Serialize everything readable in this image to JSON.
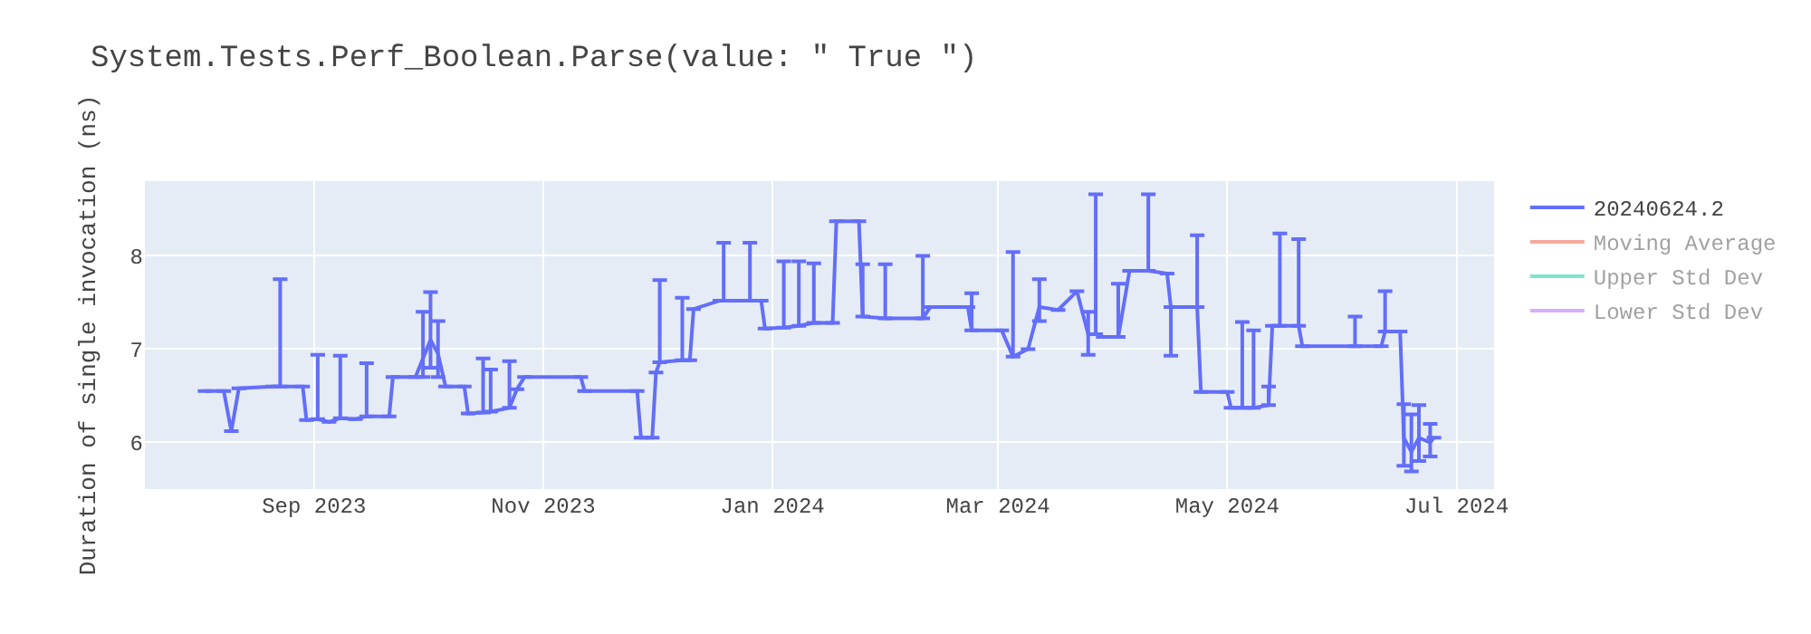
{
  "chart_data": {
    "type": "line",
    "title": "System.Tests.Perf_Boolean.Parse(value: \" True \")",
    "ylabel": "Duration of single invocation (ns)",
    "x": [
      "2023-08-03",
      "2023-08-08",
      "2023-08-10",
      "2023-08-12",
      "2023-08-21",
      "2023-08-23",
      "2023-08-29",
      "2023-08-30",
      "2023-09-02",
      "2023-09-05",
      "2023-09-08",
      "2023-09-12",
      "2023-09-15",
      "2023-09-21",
      "2023-09-22",
      "2023-09-28",
      "2023-09-30",
      "2023-10-02",
      "2023-10-04",
      "2023-10-06",
      "2023-10-11",
      "2023-10-12",
      "2023-10-16",
      "2023-10-18",
      "2023-10-23",
      "2023-10-25",
      "2023-10-27",
      "2023-11-11",
      "2023-11-12",
      "2023-11-26",
      "2023-11-27",
      "2023-11-30",
      "2023-12-01",
      "2023-12-02",
      "2023-12-08",
      "2023-12-10",
      "2023-12-11",
      "2023-12-18",
      "2023-12-19",
      "2023-12-26",
      "2023-12-29",
      "2023-12-30",
      "2024-01-04",
      "2024-01-08",
      "2024-01-12",
      "2024-01-17",
      "2024-01-18",
      "2024-01-24",
      "2024-01-25",
      "2024-01-31",
      "2024-02-10",
      "2024-02-12",
      "2024-02-22",
      "2024-02-23",
      "2024-03-02",
      "2024-03-05",
      "2024-03-09",
      "2024-03-12",
      "2024-03-17",
      "2024-03-22",
      "2024-03-25",
      "2024-03-27",
      "2024-03-29",
      "2024-04-02",
      "2024-04-05",
      "2024-04-10",
      "2024-04-15",
      "2024-04-16",
      "2024-04-23",
      "2024-04-24",
      "2024-05-01",
      "2024-05-02",
      "2024-05-05",
      "2024-05-08",
      "2024-05-12",
      "2024-05-13",
      "2024-05-15",
      "2024-05-20",
      "2024-05-21",
      "2024-06-04",
      "2024-06-11",
      "2024-06-12",
      "2024-06-16",
      "2024-06-17",
      "2024-06-19",
      "2024-06-21",
      "2024-06-24",
      "2024-06-25"
    ],
    "series": [
      {
        "name": "20240624.2",
        "color": "#636efa",
        "values": [
          6.55,
          6.55,
          6.12,
          6.58,
          6.6,
          6.6,
          6.6,
          6.24,
          6.25,
          6.22,
          6.26,
          6.25,
          6.28,
          6.28,
          6.7,
          6.7,
          6.9,
          7.1,
          6.95,
          6.6,
          6.6,
          6.31,
          6.32,
          6.33,
          6.37,
          6.57,
          6.7,
          6.7,
          6.55,
          6.55,
          6.05,
          6.05,
          6.75,
          6.86,
          6.88,
          6.88,
          7.43,
          7.52,
          7.52,
          7.52,
          7.52,
          7.22,
          7.23,
          7.25,
          7.28,
          7.28,
          8.37,
          8.37,
          7.35,
          7.33,
          7.33,
          7.45,
          7.45,
          7.2,
          7.2,
          6.92,
          7.0,
          7.45,
          7.42,
          7.62,
          7.16,
          7.16,
          7.13,
          7.13,
          7.84,
          7.84,
          7.81,
          7.45,
          7.45,
          6.54,
          6.54,
          6.37,
          6.37,
          6.37,
          6.4,
          7.25,
          7.25,
          7.25,
          7.03,
          7.03,
          7.03,
          7.19,
          7.19,
          6.05,
          5.9,
          6.05,
          6.0,
          6.05
        ],
        "errors": [
          null,
          null,
          null,
          null,
          null,
          [
            6.6,
            7.75
          ],
          null,
          null,
          [
            6.25,
            6.94
          ],
          null,
          [
            6.26,
            6.93
          ],
          null,
          [
            6.28,
            6.85
          ],
          null,
          null,
          null,
          [
            6.7,
            7.4
          ],
          [
            6.8,
            7.61
          ],
          [
            6.7,
            7.3
          ],
          null,
          null,
          null,
          [
            6.32,
            6.9
          ],
          [
            6.33,
            6.78
          ],
          [
            6.37,
            6.87
          ],
          null,
          null,
          null,
          null,
          null,
          null,
          null,
          null,
          [
            6.86,
            7.74
          ],
          [
            6.88,
            7.55
          ],
          null,
          null,
          null,
          [
            7.52,
            8.14
          ],
          [
            7.52,
            8.14
          ],
          null,
          null,
          [
            7.23,
            7.94
          ],
          [
            7.25,
            7.94
          ],
          [
            7.28,
            7.92
          ],
          null,
          null,
          null,
          [
            7.35,
            7.91
          ],
          [
            7.33,
            7.91
          ],
          [
            7.33,
            8.0
          ],
          null,
          null,
          [
            7.2,
            7.6
          ],
          null,
          [
            6.92,
            8.04
          ],
          null,
          [
            7.3,
            7.75
          ],
          null,
          null,
          [
            6.94,
            7.4
          ],
          [
            7.16,
            8.66
          ],
          null,
          [
            7.13,
            7.7
          ],
          null,
          [
            7.84,
            8.66
          ],
          null,
          [
            6.93,
            7.45
          ],
          [
            7.45,
            8.22
          ],
          null,
          null,
          null,
          [
            6.37,
            7.29
          ],
          [
            6.37,
            7.2
          ],
          [
            6.4,
            6.6
          ],
          null,
          [
            7.25,
            8.24
          ],
          [
            7.25,
            8.18
          ],
          null,
          [
            7.03,
            7.35
          ],
          null,
          [
            7.19,
            7.62
          ],
          null,
          [
            5.75,
            6.41
          ],
          [
            5.69,
            6.3
          ],
          [
            5.8,
            6.4
          ],
          [
            5.85,
            6.2
          ],
          null
        ]
      },
      {
        "name": "Moving Average",
        "color": "#ef553b",
        "values": [
          null,
          null,
          null,
          null,
          null,
          null,
          null,
          null,
          null,
          null,
          null,
          null,
          null,
          null,
          null,
          null,
          null,
          null,
          null,
          null,
          null,
          null,
          null,
          null,
          null,
          null,
          null,
          null,
          null,
          null,
          null,
          null,
          null,
          null,
          null,
          null,
          null,
          null,
          null,
          null,
          null,
          null,
          null,
          null,
          null,
          null,
          null,
          null,
          null,
          null,
          null,
          null,
          null,
          null,
          null,
          null,
          null,
          null,
          null,
          null,
          null,
          null,
          null,
          null,
          null,
          null,
          null,
          null,
          null,
          null,
          null,
          null,
          null,
          null,
          null,
          null,
          null,
          null,
          null,
          null,
          null,
          null,
          null,
          null,
          null,
          null,
          null,
          null
        ]
      },
      {
        "name": "Upper Std Dev",
        "color": "#00cc96",
        "values": [
          null,
          null,
          null,
          null,
          null,
          null,
          null,
          null,
          null,
          null,
          null,
          null,
          null,
          null,
          null,
          null,
          null,
          null,
          null,
          null,
          null,
          null,
          null,
          null,
          null,
          null,
          null,
          null,
          null,
          null,
          null,
          null,
          null,
          null,
          null,
          null,
          null,
          null,
          null,
          null,
          null,
          null,
          null,
          null,
          null,
          null,
          null,
          null,
          null,
          null,
          null,
          null,
          null,
          null,
          null,
          null,
          null,
          null,
          null,
          null,
          null,
          null,
          null,
          null,
          null,
          null,
          null,
          null,
          null,
          null,
          null,
          null,
          null,
          null,
          null,
          null,
          null,
          null,
          null,
          null,
          null,
          null,
          null,
          null,
          null,
          null,
          null,
          null
        ]
      },
      {
        "name": "Lower Std Dev",
        "color": "#ab63fa",
        "values": [
          null,
          null,
          null,
          null,
          null,
          null,
          null,
          null,
          null,
          null,
          null,
          null,
          null,
          null,
          null,
          null,
          null,
          null,
          null,
          null,
          null,
          null,
          null,
          null,
          null,
          null,
          null,
          null,
          null,
          null,
          null,
          null,
          null,
          null,
          null,
          null,
          null,
          null,
          null,
          null,
          null,
          null,
          null,
          null,
          null,
          null,
          null,
          null,
          null,
          null,
          null,
          null,
          null,
          null,
          null,
          null,
          null,
          null,
          null,
          null,
          null,
          null,
          null,
          null,
          null,
          null,
          null,
          null,
          null,
          null,
          null,
          null,
          null,
          null,
          null,
          null,
          null,
          null,
          null,
          null,
          null,
          null,
          null,
          null,
          null,
          null,
          null,
          null
        ]
      }
    ],
    "xlim": [
      "2023-07-18",
      "2024-07-11"
    ],
    "xticks": [
      {
        "value": "2023-09-01",
        "label": "Sep 2023"
      },
      {
        "value": "2023-11-01",
        "label": "Nov 2023"
      },
      {
        "value": "2024-01-01",
        "label": "Jan 2024"
      },
      {
        "value": "2024-03-01",
        "label": "Mar 2024"
      },
      {
        "value": "2024-05-01",
        "label": "May 2024"
      },
      {
        "value": "2024-07-01",
        "label": "Jul 2024"
      }
    ],
    "ylim": [
      5.5,
      8.8
    ],
    "yticks": [
      6,
      7,
      8
    ],
    "grid": true,
    "legend": "top right",
    "marker": "none",
    "line_style": "solid"
  }
}
